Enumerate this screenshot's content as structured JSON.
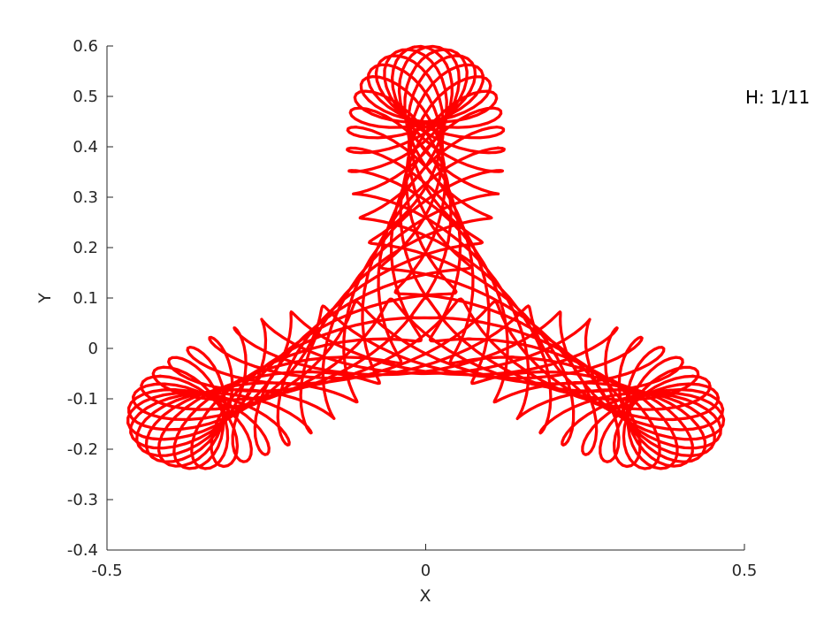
{
  "chart_data": {
    "type": "line",
    "title": "",
    "xlabel": "X",
    "ylabel": "Y",
    "xlim": [
      -0.5,
      0.5
    ],
    "ylim": [
      -0.4,
      0.6
    ],
    "x_ticks": [
      -0.5,
      0,
      0.5
    ],
    "x_tick_labels": [
      "-0.5",
      "0",
      "0.5"
    ],
    "y_ticks": [
      -0.4,
      -0.3,
      -0.2,
      -0.1,
      0,
      0.1,
      0.2,
      0.3,
      0.4,
      0.5,
      0.6
    ],
    "y_tick_labels": [
      "-0.4",
      "-0.3",
      "-0.2",
      "-0.1",
      "0",
      "0.1",
      "0.2",
      "0.3",
      "0.4",
      "0.5",
      "0.6"
    ],
    "grid": false,
    "annotation": "H: 1/11",
    "line_color": "#ff0000",
    "series": [
      {
        "trajectory_model": {
          "outer_radius": 0.25,
          "outer_angular_rate": 1.0,
          "outer_phase": 1.5708,
          "lobe_radius": 0.2,
          "lobe_angular_rate": -2.0,
          "lobe_phase": 1.5708,
          "loop_radius": 0.075,
          "loop_angular_rate": 7.3,
          "loop_phase": 0.0,
          "center": [
            0.0,
            0.075
          ],
          "t_range": [
            0,
            260
          ],
          "sample_count": 9000
        }
      }
    ]
  }
}
